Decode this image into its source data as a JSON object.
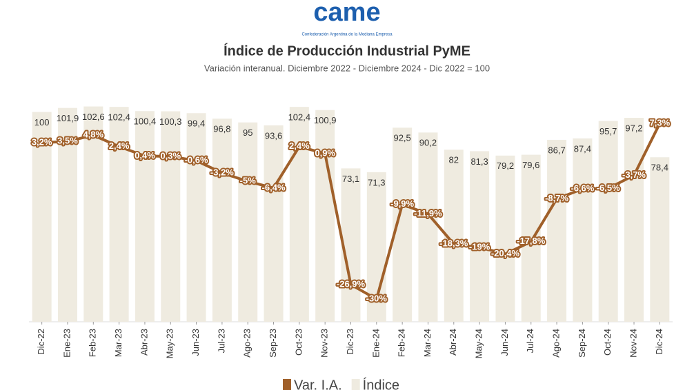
{
  "header": {
    "logo": "came",
    "logo_caption": "Confederación Argentina de la Mediana Empresa"
  },
  "chart_data": {
    "type": "bar-line",
    "title": "Índice de Producción Industrial PyME",
    "subtitle": "Variación interanual. Diciembre 2022 - Diciembre 2024 - Dic 2022 = 100",
    "categories": [
      "Dic-22",
      "Ene-23",
      "Feb-23",
      "Mar-23",
      "Abr-23",
      "May-23",
      "Jun-23",
      "Jul-23",
      "Ago-23",
      "Sep-23",
      "Oct-23",
      "Nov-23",
      "Dic-23",
      "Ene-24",
      "Feb-24",
      "Mar-24",
      "Abr-24",
      "May-24",
      "Jun-24",
      "Jul-24",
      "Ago-24",
      "Sep-24",
      "Oct-24",
      "Nov-24",
      "Dic-24"
    ],
    "ylim": [
      0,
      110
    ],
    "y2lim": [
      -34.8,
      14.2
    ],
    "legend": "bottom",
    "series": [
      {
        "name": "Var. I.A.",
        "color": "#a0602a",
        "axis": "y2",
        "values": [
          3.2,
          3.5,
          4.8,
          2.4,
          0.4,
          0.3,
          -0.6,
          -3.2,
          -5,
          -6.4,
          2.4,
          0.9,
          -26.9,
          -30,
          -9.9,
          -11.9,
          -18.3,
          -19,
          -20.4,
          -17.8,
          -8.7,
          -6.6,
          -6.5,
          -3.7,
          7.3
        ],
        "value_labels": [
          "3,2%",
          "3,5%",
          "4,8%",
          "2,4%",
          "0,4%",
          "0,3%",
          "-0,6%",
          "-3,2%",
          "-5%",
          "-6,4%",
          "2,4%",
          "0,9%",
          "-26,9%",
          "-30%",
          "-9,9%",
          "-11,9%",
          "-18,3%",
          "-19%",
          "-20,4%",
          "-17,8%",
          "-8,7%",
          "-6,6%",
          "-6,5%",
          "-3,7%",
          "7,3%"
        ]
      },
      {
        "name": "Índice",
        "color": "#efebe0",
        "values": [
          100,
          101.9,
          102.6,
          102.4,
          100.4,
          100.3,
          99.4,
          96.8,
          95,
          93.6,
          102.4,
          100.9,
          73.1,
          71.3,
          92.5,
          90.2,
          82,
          81.3,
          79.2,
          79.6,
          86.7,
          87.4,
          95.7,
          97.2,
          78.4
        ],
        "value_labels": [
          "100",
          "101,9",
          "102,6",
          "102,4",
          "100,4",
          "100,3",
          "99,4",
          "96,8",
          "95",
          "93,6",
          "102,4",
          "100,9",
          "73,1",
          "71,3",
          "92,5",
          "90,2",
          "82",
          "81,3",
          "79,2",
          "79,6",
          "86,7",
          "87,4",
          "95,7",
          "97,2",
          "78,4"
        ]
      }
    ]
  }
}
